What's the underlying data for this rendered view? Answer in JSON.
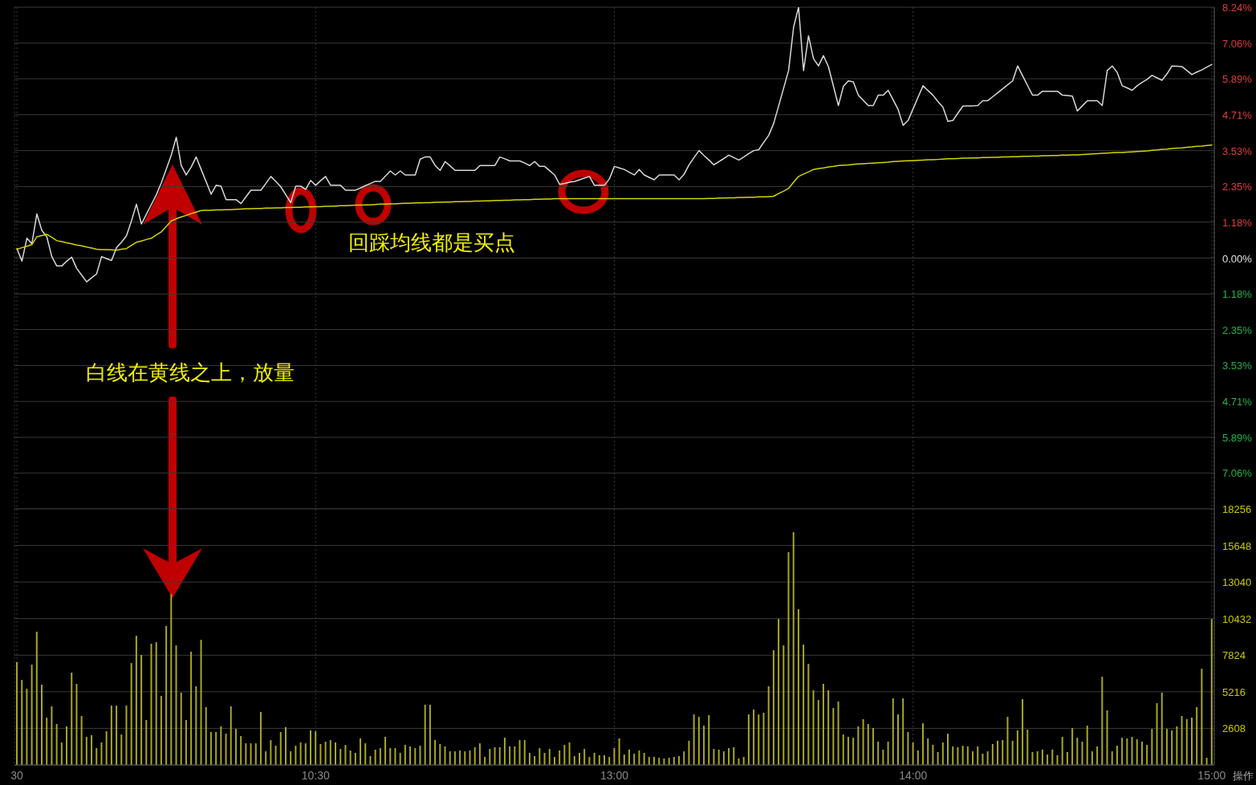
{
  "chart_data": [
    {
      "type": "line",
      "categories": [
        null,
        null,
        null,
        null,
        null,
        null,
        null,
        null,
        null,
        null,
        null,
        null,
        null,
        null,
        null,
        null,
        null,
        null,
        null,
        null,
        null,
        null,
        null,
        null,
        null,
        null,
        null,
        null,
        null,
        null,
        null,
        null,
        null,
        null,
        null,
        null,
        null,
        null,
        null,
        null,
        null,
        null,
        null,
        null,
        null,
        null,
        null,
        null,
        null,
        null,
        null,
        null,
        null,
        null,
        null,
        null,
        null,
        null,
        null,
        null,
        null,
        null,
        null,
        null,
        null,
        null,
        null,
        null,
        null,
        null,
        null,
        null,
        null,
        null,
        null,
        null,
        null,
        null,
        null,
        null,
        null,
        null,
        null,
        null,
        null,
        null,
        null,
        null,
        null,
        null,
        null,
        null,
        null,
        null,
        null,
        null,
        null,
        null,
        null,
        null,
        null,
        null,
        null,
        null,
        null,
        null,
        null,
        null,
        null,
        null,
        null,
        null,
        null,
        null,
        null,
        null,
        null,
        null,
        null,
        null,
        null,
        null,
        null,
        null,
        null,
        null,
        null,
        null,
        null,
        null,
        null,
        null,
        null,
        null,
        null,
        null,
        null,
        null,
        null,
        null,
        null,
        null,
        null,
        null,
        null,
        null,
        null,
        null,
        null,
        null,
        null,
        null,
        null,
        null,
        null,
        null,
        null,
        null,
        null,
        null,
        null,
        null,
        null,
        null,
        null,
        null,
        null,
        null,
        null,
        null,
        null,
        null,
        null,
        null,
        null,
        null,
        null,
        null,
        null,
        null,
        null,
        null,
        null,
        null,
        null,
        null,
        null,
        null,
        null,
        null,
        null,
        null,
        null,
        null,
        null,
        null,
        null,
        null,
        null,
        null,
        null,
        null,
        null,
        null,
        null,
        null,
        null,
        null,
        null,
        null,
        null,
        null,
        null,
        null,
        null,
        null,
        null,
        null,
        null,
        null,
        null,
        null,
        null,
        null,
        null,
        null,
        null,
        null,
        null,
        null,
        null,
        null,
        null,
        null,
        null,
        null,
        null,
        null,
        null,
        null,
        null
      ],
      "ylim": [
        -8.24,
        8.24
      ],
      "yticks": [
        {
          "value": 8.24,
          "label": "8.24%"
        },
        {
          "value": 7.06,
          "label": "7.06%"
        },
        {
          "value": 5.89,
          "label": "5.89%"
        },
        {
          "value": 4.71,
          "label": "4.71%"
        },
        {
          "value": 3.53,
          "label": "3.53%"
        },
        {
          "value": 2.35,
          "label": "2.35%"
        },
        {
          "value": 1.18,
          "label": "1.18%"
        },
        {
          "value": 0,
          "label": "0.00%"
        },
        {
          "value": -1.18,
          "label": "1.18%"
        },
        {
          "value": -2.35,
          "label": "2.35%"
        },
        {
          "value": -3.53,
          "label": "3.53%"
        },
        {
          "value": -4.71,
          "label": "4.71%"
        },
        {
          "value": -5.89,
          "label": "5.89%"
        },
        {
          "value": -7.06,
          "label": "7.06%"
        }
      ],
      "tick_labels": "y",
      "grid": true,
      "marker": "none",
      "line_style": "solid",
      "annotations": [
        "回踩均线都是买点",
        "白线在黄线之上，放量"
      ],
      "series": [
        {
          "color": "#d8d8d8",
          "values": [
            0.31,
            -0.1,
            0.65,
            0.47,
            1.45,
            0.91,
            0.7,
            0.05,
            -0.26,
            -0.26,
            -0.1,
            0.03,
            -0.34,
            -0.56,
            -0.78,
            -0.65,
            -0.52,
            0.05,
            -0.02,
            -0.08,
            0.34,
            0.52,
            0.73,
            1.22,
            1.77,
            1.12,
            1.44,
            1.76,
            2.08,
            2.47,
            2.92,
            3.38,
            3.97,
            3.04,
            2.73,
            2.99,
            3.32,
            2.91,
            2.51,
            2.1,
            2.39,
            2.36,
            1.92,
            1.92,
            1.92,
            1.79,
            2.01,
            2.23,
            2.23,
            2.23,
            2.45,
            2.68,
            2.52,
            2.34,
            2.08,
            1.82,
            2.36,
            2.36,
            2.26,
            2.55,
            2.39,
            2.54,
            2.68,
            2.39,
            2.39,
            2.39,
            2.23,
            2.23,
            2.23,
            2.3,
            2.38,
            2.45,
            2.52,
            2.52,
            2.69,
            2.86,
            2.73,
            2.86,
            2.73,
            2.73,
            2.73,
            3.25,
            3.32,
            3.32,
            3.04,
            2.88,
            3.17,
            3.03,
            2.88,
            2.88,
            2.88,
            2.88,
            2.88,
            3.04,
            3.04,
            3.04,
            3.04,
            3.32,
            3.26,
            3.19,
            3.19,
            3.19,
            3.12,
            3.04,
            3.17,
            3.01,
            3.01,
            2.87,
            2.73,
            2.42,
            2.45,
            2.49,
            2.52,
            2.57,
            2.63,
            2.68,
            2.39,
            2.39,
            2.39,
            2.6,
            3.01,
            2.96,
            2.91,
            2.82,
            2.73,
            2.91,
            2.73,
            2.65,
            2.57,
            2.73,
            2.73,
            2.73,
            2.73,
            2.57,
            2.75,
            3.06,
            3.3,
            3.53,
            3.37,
            3.22,
            3.06,
            3.17,
            3.27,
            3.38,
            3.3,
            3.22,
            3.32,
            3.43,
            3.53,
            3.56,
            3.8,
            4.03,
            4.42,
            5.0,
            5.58,
            6.16,
            7.58,
            8.24,
            6.16,
            7.3,
            6.55,
            6.31,
            6.65,
            6.29,
            5.65,
            5.01,
            5.64,
            5.82,
            5.79,
            5.35,
            5.18,
            5.01,
            5.01,
            5.35,
            5.35,
            5.51,
            5.2,
            4.88,
            4.36,
            4.52,
            4.9,
            5.28,
            5.66,
            5.5,
            5.35,
            5.14,
            4.96,
            4.49,
            4.52,
            4.76,
            4.99,
            5.0,
            5.0,
            5.01,
            5.17,
            5.17,
            5.3,
            5.43,
            5.56,
            5.69,
            5.82,
            6.31,
            5.99,
            5.67,
            5.35,
            5.35,
            5.48,
            5.48,
            5.48,
            5.48,
            5.35,
            5.34,
            5.32,
            4.83,
            5.0,
            5.17,
            5.17,
            5.17,
            5.01,
            6.16,
            6.31,
            6.1,
            5.66,
            5.59,
            5.51,
            5.66,
            5.77,
            5.87,
            6.0,
            5.92,
            5.84,
            6.05,
            6.31,
            6.3,
            6.29,
            6.16,
            6.03,
            6.11,
            6.18,
            6.27,
            6.36
          ]
        },
        {
          "color": "#d4d400",
          "values": [
            0.29,
            0.34,
            0.39,
            0.44,
            0.7,
            0.74,
            0.78,
            0.68,
            0.57,
            0.54,
            0.5,
            0.47,
            0.43,
            0.4,
            0.36,
            0.33,
            0.29,
            0.28,
            0.28,
            0.27,
            0.26,
            0.29,
            0.31,
            0.42,
            0.52,
            0.56,
            0.61,
            0.65,
            0.76,
            0.86,
            1.04,
            1.22,
            1.29,
            1.35,
            1.4,
            1.46,
            1.51,
            1.56,
            1.57,
            1.57,
            1.58,
            1.58,
            1.59,
            1.59,
            1.6,
            1.61,
            1.62,
            1.62,
            1.63,
            1.63,
            1.64,
            1.64,
            1.65,
            1.65,
            1.66,
            1.66,
            1.67,
            1.67,
            1.68,
            1.68,
            1.69,
            1.69,
            1.7,
            1.7,
            1.71,
            1.72,
            1.72,
            1.73,
            1.74,
            1.74,
            1.75,
            1.75,
            1.76,
            1.77,
            1.77,
            1.78,
            1.78,
            1.79,
            1.8,
            1.8,
            1.81,
            1.81,
            1.82,
            1.82,
            1.83,
            1.83,
            1.84,
            1.84,
            1.85,
            1.85,
            1.86,
            1.86,
            1.87,
            1.87,
            1.88,
            1.88,
            1.89,
            1.89,
            1.9,
            1.9,
            1.91,
            1.91,
            1.92,
            1.92,
            1.93,
            1.93,
            1.94,
            1.94,
            1.95,
            1.95,
            1.95,
            1.95,
            1.95,
            1.95,
            1.95,
            1.95,
            1.95,
            1.95,
            1.95,
            1.95,
            1.95,
            1.95,
            1.95,
            1.95,
            1.95,
            1.95,
            1.95,
            1.95,
            1.95,
            1.95,
            1.95,
            1.95,
            1.95,
            1.95,
            1.95,
            1.95,
            1.95,
            1.95,
            1.95,
            1.96,
            1.96,
            1.97,
            1.97,
            1.98,
            1.98,
            1.99,
            1.99,
            2.0,
            2.0,
            2.01,
            2.01,
            2.02,
            2.03,
            2.12,
            2.2,
            2.29,
            2.49,
            2.68,
            2.76,
            2.83,
            2.91,
            2.94,
            2.96,
            2.99,
            3.01,
            3.04,
            3.05,
            3.06,
            3.08,
            3.09,
            3.1,
            3.11,
            3.12,
            3.13,
            3.14,
            3.15,
            3.17,
            3.18,
            3.19,
            3.2,
            3.2,
            3.21,
            3.22,
            3.23,
            3.23,
            3.24,
            3.25,
            3.26,
            3.26,
            3.27,
            3.28,
            3.28,
            3.29,
            3.29,
            3.3,
            3.3,
            3.31,
            3.31,
            3.32,
            3.32,
            3.33,
            3.33,
            3.34,
            3.34,
            3.35,
            3.35,
            3.36,
            3.36,
            3.37,
            3.37,
            3.38,
            3.38,
            3.39,
            3.39,
            3.4,
            3.41,
            3.42,
            3.43,
            3.44,
            3.45,
            3.46,
            3.47,
            3.47,
            3.48,
            3.49,
            3.5,
            3.51,
            3.52,
            3.54,
            3.55,
            3.57,
            3.58,
            3.6,
            3.61,
            3.62,
            3.64,
            3.65,
            3.67,
            3.68,
            3.7,
            3.71
          ]
        }
      ]
    },
    {
      "type": "bar",
      "categories": [
        "30",
        null,
        null,
        null,
        null,
        null,
        null,
        null,
        null,
        null,
        null,
        null,
        null,
        null,
        null,
        null,
        null,
        null,
        null,
        null,
        null,
        null,
        null,
        null,
        null,
        null,
        null,
        null,
        null,
        null,
        null,
        null,
        null,
        null,
        null,
        null,
        null,
        null,
        null,
        null,
        null,
        null,
        null,
        null,
        null,
        null,
        null,
        null,
        null,
        null,
        null,
        null,
        null,
        null,
        null,
        null,
        null,
        null,
        null,
        null,
        "10:30",
        null,
        null,
        null,
        null,
        null,
        null,
        null,
        null,
        null,
        null,
        null,
        null,
        null,
        null,
        null,
        null,
        null,
        null,
        null,
        null,
        null,
        null,
        null,
        null,
        null,
        null,
        null,
        null,
        null,
        null,
        null,
        null,
        null,
        null,
        null,
        null,
        null,
        null,
        null,
        null,
        null,
        null,
        null,
        null,
        null,
        null,
        null,
        null,
        null,
        null,
        null,
        null,
        null,
        null,
        null,
        null,
        null,
        null,
        null,
        "13:00",
        null,
        null,
        null,
        null,
        null,
        null,
        null,
        null,
        null,
        null,
        null,
        null,
        null,
        null,
        null,
        null,
        null,
        null,
        null,
        null,
        null,
        null,
        null,
        null,
        null,
        null,
        null,
        null,
        null,
        null,
        null,
        null,
        null,
        null,
        null,
        null,
        null,
        null,
        null,
        null,
        null,
        null,
        null,
        null,
        null,
        null,
        null,
        null,
        null,
        null,
        null,
        null,
        null,
        null,
        null,
        null,
        null,
        null,
        null,
        "14:00",
        null,
        null,
        null,
        null,
        null,
        null,
        null,
        null,
        null,
        null,
        null,
        null,
        null,
        null,
        null,
        null,
        null,
        null,
        null,
        null,
        null,
        null,
        null,
        null,
        null,
        null,
        null,
        null,
        null,
        null,
        null,
        null,
        null,
        null,
        null,
        null,
        null,
        null,
        null,
        null,
        null,
        null,
        null,
        null,
        null,
        null,
        null,
        null,
        null,
        null,
        null,
        null,
        null,
        null,
        null,
        null,
        null,
        null,
        null,
        "15:00"
      ],
      "ylim": [
        0,
        18256
      ],
      "yticks": [
        2608,
        5216,
        7824,
        10432,
        13040,
        15648,
        18256
      ],
      "grid": true,
      "annotations": [
        "操作"
      ],
      "series": [
        {
          "color": "#a8a820",
          "values": [
            7320,
            6060,
            5430,
            7150,
            9500,
            5720,
            3370,
            4180,
            2920,
            1600,
            2750,
            6580,
            5780,
            3490,
            2000,
            2120,
            1200,
            1600,
            2400,
            4230,
            4230,
            2170,
            4230,
            7260,
            9210,
            7840,
            3200,
            8640,
            8750,
            4920,
            9900,
            12180,
            8520,
            5150,
            3200,
            8070,
            5610,
            8920,
            4120,
            2350,
            2350,
            2750,
            2230,
            4180,
            2570,
            2060,
            1540,
            1540,
            1540,
            3780,
            970,
            1770,
            1370,
            2350,
            2690,
            970,
            1370,
            1600,
            1540,
            2460,
            2400,
            1490,
            1660,
            1770,
            1600,
            1140,
            1430,
            1030,
            860,
            1890,
            1540,
            630,
            1090,
            1200,
            2000,
            1200,
            1200,
            860,
            1430,
            1320,
            1200,
            1370,
            4290,
            4290,
            1770,
            1490,
            1320,
            970,
            970,
            1030,
            970,
            1030,
            1260,
            1540,
            570,
            1140,
            1260,
            1260,
            1940,
            1320,
            1320,
            1770,
            1770,
            860,
            630,
            1200,
            860,
            1140,
            570,
            1030,
            1430,
            1600,
            630,
            860,
            1140,
            570,
            860,
            690,
            690,
            570,
            1200,
            1890,
            740,
            1090,
            800,
            1030,
            860,
            570,
            570,
            510,
            460,
            510,
            570,
            630,
            970,
            1720,
            3600,
            3430,
            2800,
            3550,
            1140,
            1090,
            970,
            1200,
            1260,
            460,
            570,
            3600,
            3950,
            3600,
            3720,
            5610,
            8180,
            10410,
            8520,
            15160,
            16590,
            11100,
            8580,
            7210,
            5320,
            4630,
            5780,
            5320,
            4060,
            4520,
            2170,
            2000,
            1940,
            2750,
            3260,
            2920,
            2630,
            1660,
            1090,
            1660,
            4750,
            3600,
            4750,
            2350,
            1600,
            1030,
            2970,
            1890,
            1430,
            920,
            1600,
            2230,
            1320,
            1260,
            1370,
            1320,
            970,
            1320,
            800,
            970,
            1490,
            1720,
            1770,
            3430,
            1720,
            2460,
            4690,
            2520,
            920,
            970,
            1090,
            740,
            1090,
            690,
            2000,
            920,
            2630,
            1940,
            1660,
            2800,
            970,
            1320,
            6290,
            3890,
            970,
            1370,
            1940,
            1890,
            2000,
            1830,
            1660,
            1430,
            2570,
            4400,
            5150,
            2570,
            2460,
            2750,
            3490,
            3260,
            3370,
            4120,
            6860,
            510,
            10400
          ]
        }
      ]
    }
  ]
}
